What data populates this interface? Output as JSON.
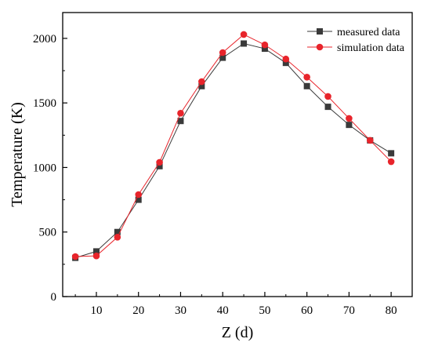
{
  "chart_data": {
    "type": "line",
    "xlabel": "Z (d)",
    "ylabel": "Temperature (K)",
    "xlim": [
      2,
      85
    ],
    "ylim": [
      0,
      2200
    ],
    "xticks": [
      10,
      20,
      30,
      40,
      50,
      60,
      70,
      80
    ],
    "yticks": [
      0,
      500,
      1000,
      1500,
      2000
    ],
    "grid": false,
    "legend_position": "top-right",
    "x": [
      5,
      10,
      15,
      20,
      25,
      30,
      35,
      40,
      45,
      50,
      55,
      60,
      65,
      70,
      75,
      80
    ],
    "series": [
      {
        "name": "measured data",
        "marker": "square",
        "color": "#3a3a3a",
        "values": [
          300,
          350,
          500,
          750,
          1010,
          1360,
          1630,
          1850,
          1960,
          1920,
          1810,
          1630,
          1470,
          1330,
          1210,
          1110
        ]
      },
      {
        "name": "simulation data",
        "marker": "circle",
        "color": "#e8242b",
        "values": [
          310,
          315,
          460,
          790,
          1040,
          1420,
          1665,
          1890,
          2030,
          1950,
          1840,
          1700,
          1550,
          1380,
          1210,
          1045
        ]
      }
    ]
  }
}
